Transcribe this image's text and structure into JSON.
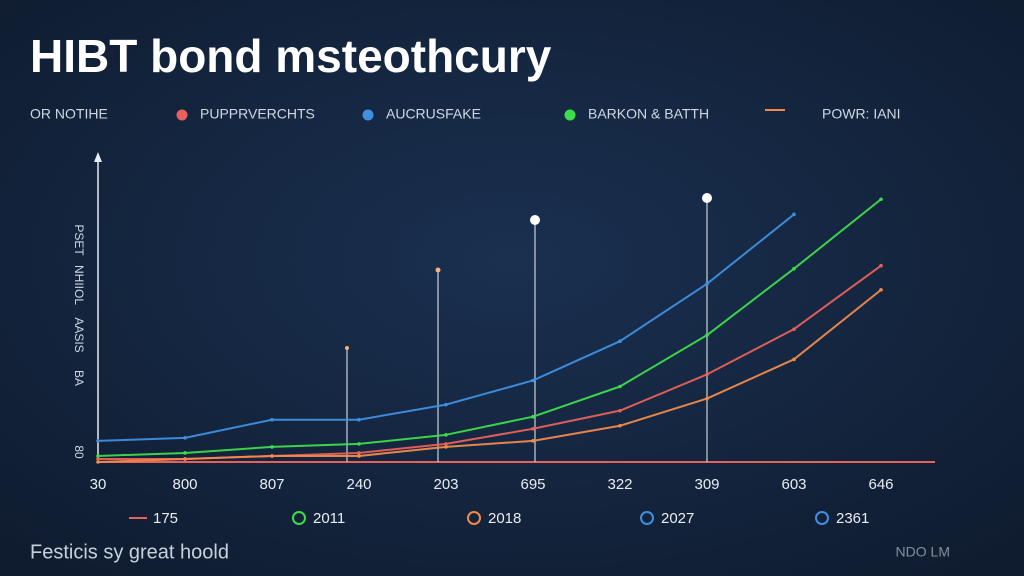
{
  "chart_data": {
    "type": "line",
    "title": "HIBT bond msteothcury",
    "legend_title": "OR NOTIHE",
    "categories": [
      "30",
      "800",
      "807",
      "240",
      "203",
      "695",
      "322",
      "309",
      "603",
      "646"
    ],
    "y_labels": [
      "PSET",
      "NHIIOL",
      "AASIS",
      "BA",
      "80"
    ],
    "ylim": [
      0,
      100
    ],
    "series": [
      {
        "name": "PUPPRVERCHTS",
        "color": "#e8605a",
        "values": [
          1,
          1,
          2,
          3,
          6,
          11,
          17,
          29,
          44,
          65
        ]
      },
      {
        "name": "AUCRUSFAKE",
        "color": "#3f8fe0",
        "values": [
          7,
          8,
          14,
          14,
          19,
          27,
          40,
          59,
          82,
          null
        ]
      },
      {
        "name": "BARKON & BATTH",
        "color": "#3ddc4a",
        "values": [
          2,
          3,
          5,
          6,
          9,
          15,
          25,
          42,
          64,
          87
        ]
      },
      {
        "name": "POWR: IANI",
        "color": "#f08a4b",
        "values": [
          0,
          1,
          2,
          2,
          5,
          7,
          12,
          21,
          34,
          57
        ]
      }
    ],
    "footer_legend": [
      {
        "label": "175",
        "color": "#e8605a"
      },
      {
        "label": "2011",
        "color": "#3ddc4a"
      },
      {
        "label": "2018",
        "color": "#f08a4b"
      },
      {
        "label": "2027",
        "color": "#3f8fe0"
      },
      {
        "label": "2361",
        "color": "#3f8fe0"
      }
    ],
    "footnote": "Festicis sy great hoold",
    "watermark": "NDO LM"
  }
}
